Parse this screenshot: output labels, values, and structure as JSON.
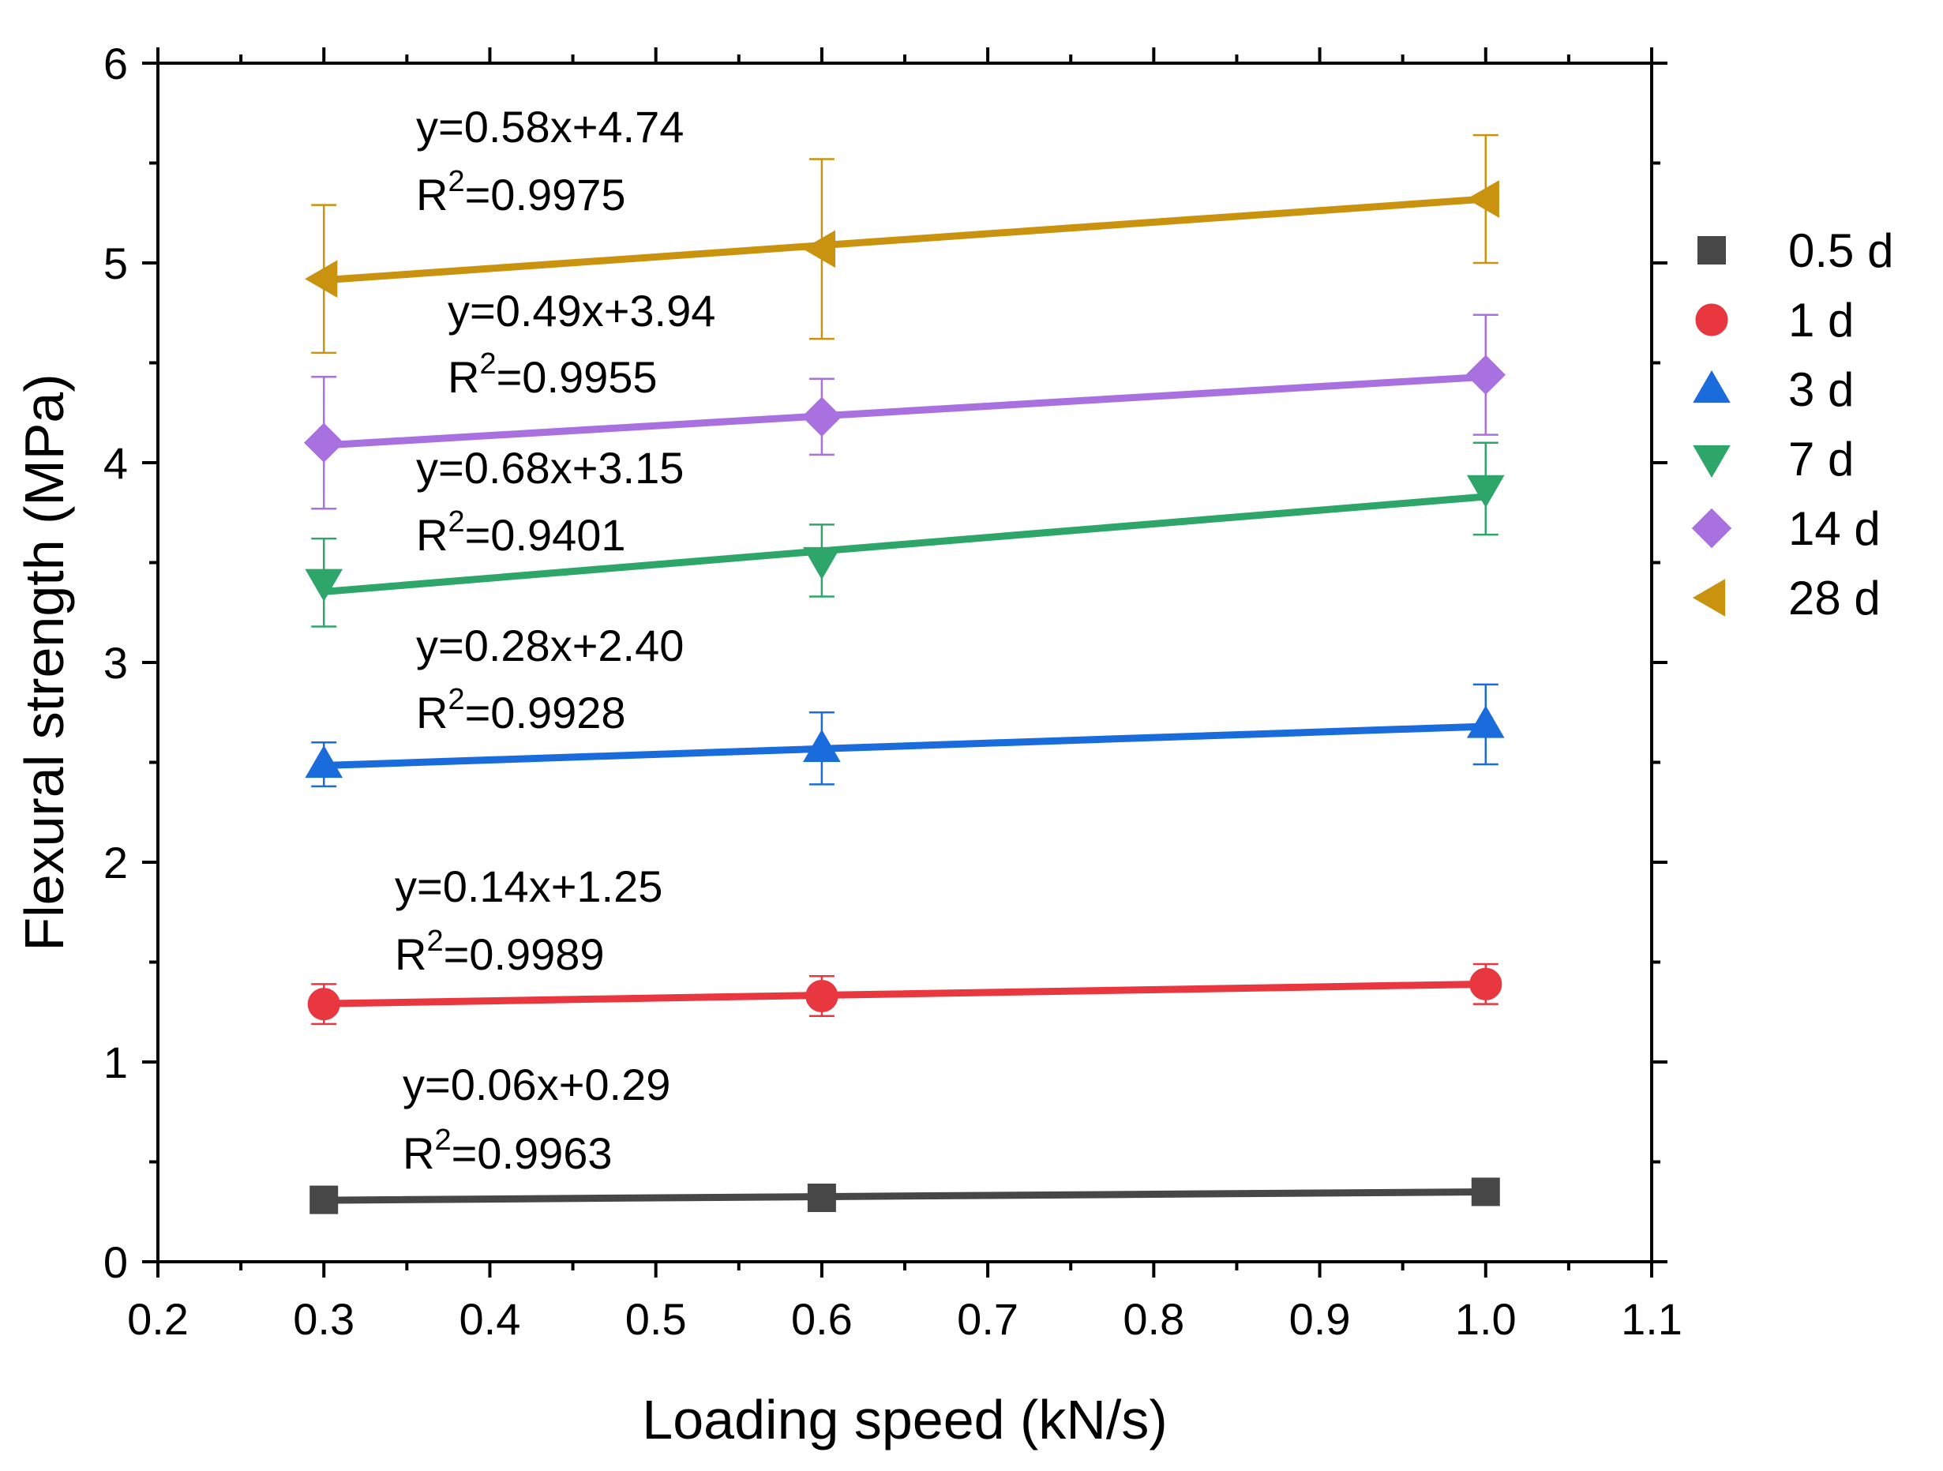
{
  "chart_data": {
    "type": "scatter",
    "title": "",
    "xlabel": "Loading speed (kN/s)",
    "ylabel": "Flexural strength (MPa)",
    "xlim": [
      0.2,
      1.1
    ],
    "ylim": [
      0,
      6
    ],
    "x_ticks": [
      0.2,
      0.3,
      0.4,
      0.5,
      0.6,
      0.7,
      0.8,
      0.9,
      1.0,
      1.1
    ],
    "x_tick_labels": [
      "0.2",
      "0.3",
      "0.4",
      "0.5",
      "0.6",
      "0.7",
      "0.8",
      "0.9",
      "1.0",
      "1.1"
    ],
    "y_ticks": [
      0,
      1,
      2,
      3,
      4,
      5,
      6
    ],
    "y_tick_labels": [
      "0",
      "1",
      "2",
      "3",
      "4",
      "5",
      "6"
    ],
    "grid": false,
    "legend_position": "right",
    "x": [
      0.3,
      0.6,
      1.0
    ],
    "series": [
      {
        "name": "0.5 d",
        "marker": "square",
        "color": "#474747",
        "values": [
          0.31,
          0.32,
          0.35
        ],
        "errors": [
          0.01,
          0.01,
          0.01
        ],
        "fit": {
          "slope": 0.06,
          "intercept": 0.29
        },
        "equation": "y=0.06x+0.29",
        "r2": "=0.9963"
      },
      {
        "name": "1 d",
        "marker": "circle",
        "color": "#e8373e",
        "values": [
          1.29,
          1.33,
          1.39
        ],
        "errors": [
          0.1,
          0.1,
          0.1
        ],
        "fit": {
          "slope": 0.14,
          "intercept": 1.25
        },
        "equation": "y=0.14x+1.25",
        "r2": "=0.9989"
      },
      {
        "name": "3 d",
        "marker": "triangle-up",
        "color": "#1a6cdc",
        "values": [
          2.49,
          2.57,
          2.69
        ],
        "errors": [
          0.11,
          0.18,
          0.2
        ],
        "fit": {
          "slope": 0.28,
          "intercept": 2.4
        },
        "equation": "y=0.28x+2.40",
        "r2": "=0.9928"
      },
      {
        "name": "7 d",
        "marker": "triangle-down",
        "color": "#2ea66a",
        "values": [
          3.4,
          3.51,
          3.87
        ],
        "errors": [
          0.22,
          0.18,
          0.23
        ],
        "fit": {
          "slope": 0.68,
          "intercept": 3.15
        },
        "equation": "y=0.68x+3.15",
        "r2": "=0.9401"
      },
      {
        "name": "14 d",
        "marker": "diamond",
        "color": "#a970e0",
        "values": [
          4.1,
          4.23,
          4.44
        ],
        "errors": [
          0.33,
          0.19,
          0.3
        ],
        "fit": {
          "slope": 0.49,
          "intercept": 3.94
        },
        "equation": "y=0.49x+3.94",
        "r2": "=0.9955"
      },
      {
        "name": "28 d",
        "marker": "triangle-left",
        "color": "#c9930f",
        "values": [
          4.92,
          5.07,
          5.32
        ],
        "errors": [
          0.37,
          0.45,
          0.32
        ],
        "fit": {
          "slope": 0.58,
          "intercept": 4.74
        },
        "equation": "y=0.58x+4.74",
        "r2": "=0.9975"
      }
    ],
    "r2_prefix": "R",
    "r2_superscript": "2"
  }
}
